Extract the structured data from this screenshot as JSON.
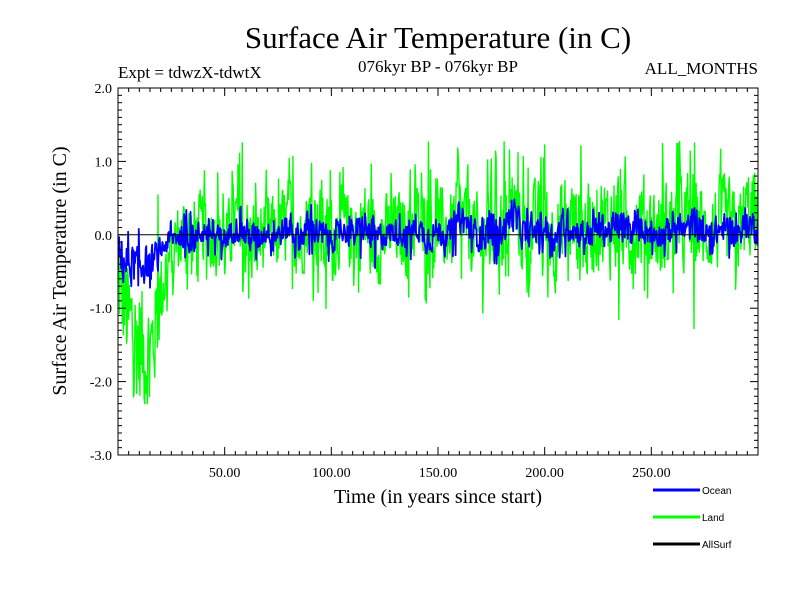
{
  "chart_data": {
    "type": "line",
    "title": "Surface Air Temperature (in C)",
    "subtitle_left": "Expt = tdwzX-tdwtX",
    "subtitle_center": "076kyr BP - 076kyr BP",
    "subtitle_right": "ALL_MONTHS",
    "xlabel": "Time (in years since start)",
    "ylabel": "Surface Air Temperature (in C)",
    "xlim": [
      0,
      300
    ],
    "ylim": [
      -3.0,
      2.0
    ],
    "x_ticks": [
      50,
      100,
      150,
      200,
      250
    ],
    "x_tick_labels": [
      "50.00",
      "100.00",
      "150.00",
      "200.00",
      "250.00"
    ],
    "y_ticks": [
      -3.0,
      -2.0,
      -1.0,
      0.0,
      1.0,
      2.0
    ],
    "y_tick_labels": [
      "-3.0",
      "-2.0",
      "-1.0",
      "0.0",
      "1.0",
      "2.0"
    ],
    "grid": false,
    "zero_line": true,
    "series": [
      {
        "name": "Land",
        "color": "#00ff00",
        "x": [
          0,
          5,
          10,
          15,
          20,
          25,
          30,
          35,
          40,
          45,
          50,
          55,
          60,
          65,
          70,
          75,
          80,
          85,
          90,
          95,
          100,
          105,
          110,
          115,
          120,
          125,
          130,
          135,
          140,
          145,
          150,
          155,
          160,
          165,
          170,
          175,
          180,
          185,
          190,
          195,
          200,
          205,
          210,
          215,
          220,
          225,
          230,
          235,
          240,
          245,
          250,
          255,
          260,
          265,
          270,
          275,
          280,
          285,
          290,
          295,
          300
        ],
        "y": [
          -0.6,
          -1.2,
          -1.5,
          -1.7,
          -0.8,
          -0.2,
          0.0,
          -0.1,
          0.1,
          0.0,
          -0.2,
          0.2,
          0.0,
          -0.1,
          0.1,
          0.0,
          0.2,
          -0.1,
          0.3,
          0.0,
          -0.1,
          0.1,
          0.0,
          0.2,
          -0.1,
          0.0,
          0.1,
          0.0,
          0.2,
          -0.1,
          0.1,
          0.0,
          0.3,
          0.1,
          -0.1,
          0.2,
          0.1,
          0.4,
          0.0,
          0.1,
          0.2,
          -0.1,
          0.3,
          0.1,
          0.0,
          0.2,
          0.1,
          0.3,
          0.0,
          0.2,
          0.1,
          0.0,
          0.2,
          0.1,
          0.3,
          0.0,
          0.1,
          0.2,
          0.0,
          0.3,
          0.2
        ],
        "band_low": [
          -2.2,
          -2.2,
          -2.3,
          -2.3,
          -1.5,
          -0.9,
          -0.9,
          -1.0,
          -0.8,
          -0.9,
          -1.0,
          -0.8,
          -0.9,
          -1.1,
          -0.8,
          -0.9,
          -0.8,
          -1.0,
          -0.8,
          -1.2,
          -1.0,
          -0.9,
          -1.0,
          -0.8,
          -1.5,
          -1.0,
          -0.8,
          -1.0,
          -0.9,
          -1.2,
          -1.0,
          -0.8,
          -0.8,
          -0.9,
          -1.0,
          -1.8,
          -0.9,
          -0.7,
          -1.0,
          -0.9,
          -0.8,
          -1.0,
          -0.9,
          -0.8,
          -1.0,
          -0.9,
          -1.2,
          -1.5,
          -0.8,
          -0.9,
          -1.0,
          -0.9,
          -0.8,
          -0.9,
          -1.4,
          -0.8,
          -0.9,
          -1.0,
          -0.8,
          -0.9,
          -0.9
        ],
        "band_high": [
          0.6,
          0.9,
          1.0,
          0.9,
          0.7,
          0.9,
          1.0,
          1.3,
          1.0,
          0.9,
          0.8,
          1.0,
          1.4,
          1.0,
          0.9,
          1.0,
          1.3,
          0.9,
          1.0,
          1.0,
          1.2,
          1.0,
          0.9,
          1.3,
          1.0,
          0.9,
          1.0,
          1.1,
          1.0,
          1.3,
          1.0,
          1.0,
          1.3,
          1.2,
          1.0,
          1.2,
          1.3,
          1.6,
          1.2,
          1.2,
          1.4,
          1.2,
          1.3,
          1.4,
          1.3,
          1.4,
          1.2,
          1.4,
          1.3,
          1.5,
          1.1,
          1.4,
          1.2,
          1.4,
          1.3,
          1.1,
          1.3,
          1.2,
          1.1,
          1.4,
          1.6
        ]
      },
      {
        "name": "Ocean",
        "color": "#0000ff",
        "x": [
          0,
          5,
          10,
          15,
          20,
          25,
          30,
          35,
          40,
          45,
          50,
          55,
          60,
          65,
          70,
          75,
          80,
          85,
          90,
          95,
          100,
          105,
          110,
          115,
          120,
          125,
          130,
          135,
          140,
          145,
          150,
          155,
          160,
          165,
          170,
          175,
          180,
          185,
          190,
          195,
          200,
          205,
          210,
          215,
          220,
          225,
          230,
          235,
          240,
          245,
          250,
          255,
          260,
          265,
          270,
          275,
          280,
          285,
          290,
          295,
          300
        ],
        "y": [
          -0.3,
          -0.4,
          -0.4,
          -0.4,
          -0.2,
          -0.05,
          0.0,
          -0.05,
          0.05,
          0.0,
          -0.05,
          0.1,
          0.0,
          -0.05,
          0.05,
          0.0,
          0.1,
          -0.05,
          0.15,
          0.0,
          -0.05,
          0.05,
          0.0,
          0.1,
          -0.05,
          0.0,
          0.05,
          0.0,
          0.1,
          -0.05,
          0.05,
          0.0,
          0.25,
          0.1,
          -0.05,
          0.1,
          0.05,
          0.3,
          0.0,
          0.05,
          0.1,
          -0.05,
          0.15,
          0.05,
          0.0,
          0.1,
          0.05,
          0.15,
          0.0,
          0.1,
          0.05,
          0.0,
          0.1,
          0.05,
          0.15,
          0.0,
          0.05,
          0.1,
          0.0,
          0.15,
          0.1
        ],
        "band_low": [
          -0.9,
          -0.9,
          -0.8,
          -0.8,
          -0.5,
          -0.3,
          -0.3,
          -0.4,
          -0.3,
          -0.3,
          -0.4,
          -0.3,
          -0.3,
          -0.4,
          -0.3,
          -0.3,
          -0.3,
          -0.4,
          -0.3,
          -0.4,
          -0.4,
          -0.3,
          -0.4,
          -0.3,
          -0.5,
          -0.4,
          -0.3,
          -0.4,
          -0.3,
          -0.4,
          -0.4,
          -0.3,
          -0.3,
          -0.3,
          -0.4,
          -0.5,
          -0.3,
          -0.3,
          -0.4,
          -0.3,
          -0.3,
          -0.4,
          -0.3,
          -0.3,
          -0.4,
          -0.3,
          -0.4,
          -0.5,
          -0.3,
          -0.3,
          -0.4,
          -0.3,
          -0.3,
          -0.3,
          -0.5,
          -0.3,
          -0.3,
          -0.4,
          -0.3,
          -0.3,
          -0.3
        ],
        "band_high": [
          0.3,
          0.2,
          0.1,
          0.1,
          0.1,
          0.2,
          0.3,
          0.4,
          0.3,
          0.2,
          0.2,
          0.3,
          0.5,
          0.3,
          0.2,
          0.3,
          0.4,
          0.3,
          0.5,
          0.3,
          0.3,
          0.2,
          0.3,
          0.4,
          0.3,
          0.2,
          0.3,
          0.3,
          0.3,
          0.4,
          0.3,
          0.3,
          0.5,
          0.4,
          0.3,
          0.4,
          0.4,
          0.6,
          0.4,
          0.3,
          0.4,
          0.3,
          0.5,
          0.4,
          0.3,
          0.5,
          0.3,
          0.4,
          0.3,
          0.4,
          0.3,
          0.3,
          0.4,
          0.3,
          0.4,
          0.3,
          0.4,
          0.3,
          0.3,
          0.4,
          0.5
        ]
      },
      {
        "name": "AllSurf",
        "color": "#000000",
        "x": [],
        "y": []
      }
    ],
    "legend_position": "bottom-right",
    "legend": [
      {
        "label": "Ocean",
        "color": "#0000ff"
      },
      {
        "label": "Land",
        "color": "#00ff00"
      },
      {
        "label": "AllSurf",
        "color": "#000000"
      }
    ]
  }
}
